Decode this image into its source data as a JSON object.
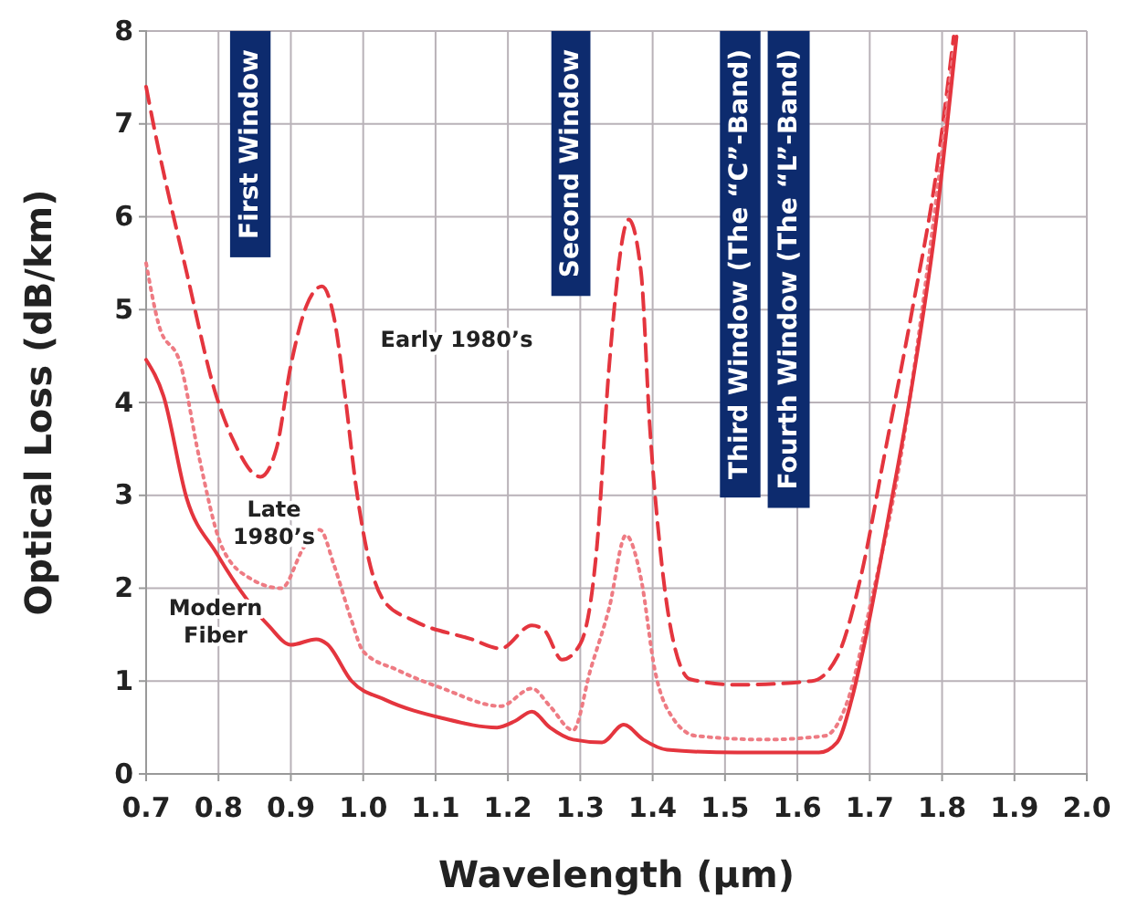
{
  "chart_data": {
    "type": "line",
    "xlabel": "Wavelength (μm)",
    "ylabel": "Optical Loss (dB/km)",
    "xlim": [
      0.7,
      2.0
    ],
    "ylim": [
      0,
      8
    ],
    "xticks": [
      0.7,
      0.8,
      0.9,
      {
        "value": 1.0,
        "label": "1.0"
      },
      1.1,
      1.2,
      1.3,
      1.4,
      1.5,
      1.6,
      1.7,
      1.8,
      1.9,
      {
        "value": 2.0,
        "label": "2.0"
      }
    ],
    "yticks": [
      0,
      1,
      2,
      3,
      4,
      5,
      6,
      7,
      8
    ],
    "grid": true,
    "bands": [
      {
        "axis": "x",
        "from": 0.816,
        "to": 0.872,
        "label": "First Window",
        "color": "#0d2b6e"
      },
      {
        "axis": "x",
        "from": 1.26,
        "to": 1.314,
        "label": "Second Window",
        "color": "#0d2b6e"
      },
      {
        "axis": "x",
        "from": 1.493,
        "to": 1.549,
        "label": "Third Window (The “C”-Band)",
        "color": "#0d2b6e"
      },
      {
        "axis": "x",
        "from": 1.559,
        "to": 1.617,
        "label": "Fourth Window (The “L”-Band)",
        "color": "#0d2b6e"
      }
    ],
    "series": [
      {
        "name": "Early 1980’s",
        "color": "#e4353e",
        "line_style": "dashed",
        "x": [
          0.7,
          0.71,
          0.756,
          0.797,
          0.82,
          0.858,
          0.88,
          0.9,
          0.922,
          0.943,
          0.96,
          0.975,
          0.99,
          1.008,
          1.03,
          1.07,
          1.15,
          1.19,
          1.233,
          1.25,
          1.275,
          1.3,
          1.323,
          1.34,
          1.367,
          1.384,
          1.396,
          1.41,
          1.428,
          1.452,
          1.517,
          1.62,
          1.655,
          1.687,
          1.72,
          1.76,
          1.79,
          1.816
        ],
        "values": [
          7.4,
          7.0,
          5.4,
          4.07,
          3.6,
          3.2,
          3.5,
          4.4,
          5.05,
          5.25,
          4.9,
          4.07,
          3.1,
          2.3,
          1.85,
          1.65,
          1.45,
          1.35,
          1.6,
          1.55,
          1.23,
          1.4,
          2.45,
          4.4,
          5.97,
          5.4,
          3.75,
          2.45,
          1.45,
          1.02,
          0.96,
          1.0,
          1.26,
          2.1,
          3.42,
          5.05,
          6.37,
          7.94
        ]
      },
      {
        "name": "Late 1980’s",
        "color": "#ee7b83",
        "line_style": "dotted",
        "x": [
          0.7,
          0.717,
          0.748,
          0.773,
          0.805,
          0.845,
          0.887,
          0.918,
          0.94,
          0.96,
          0.984,
          1.0,
          1.047,
          1.11,
          1.19,
          1.233,
          1.258,
          1.29,
          1.314,
          1.34,
          1.363,
          1.384,
          1.403,
          1.428,
          1.46,
          1.556,
          1.638,
          1.67,
          1.7,
          1.743,
          1.784,
          1.816
        ],
        "values": [
          5.5,
          4.85,
          4.4,
          3.42,
          2.44,
          2.1,
          2.0,
          2.44,
          2.63,
          2.24,
          1.65,
          1.32,
          1.12,
          0.92,
          0.73,
          0.92,
          0.73,
          0.47,
          1.12,
          1.79,
          2.57,
          2.1,
          1.12,
          0.6,
          0.41,
          0.37,
          0.41,
          0.8,
          1.79,
          3.42,
          5.7,
          7.8
        ]
      },
      {
        "name": "Modern Fiber",
        "color": "#e4353e",
        "line_style": "solid",
        "x": [
          0.7,
          0.724,
          0.756,
          0.797,
          0.83,
          0.87,
          0.9,
          0.935,
          0.95,
          0.984,
          1.03,
          1.11,
          1.185,
          1.21,
          1.233,
          1.258,
          1.29,
          1.33,
          1.36,
          1.387,
          1.42,
          1.517,
          1.63,
          1.655,
          1.675,
          1.694,
          1.726,
          1.76,
          1.79,
          1.82
        ],
        "values": [
          4.46,
          4.07,
          2.97,
          2.38,
          1.98,
          1.59,
          1.39,
          1.45,
          1.4,
          1.0,
          0.8,
          0.6,
          0.5,
          0.57,
          0.67,
          0.5,
          0.37,
          0.34,
          0.53,
          0.37,
          0.26,
          0.23,
          0.23,
          0.34,
          0.8,
          1.45,
          2.77,
          4.26,
          5.84,
          7.94
        ]
      }
    ]
  }
}
